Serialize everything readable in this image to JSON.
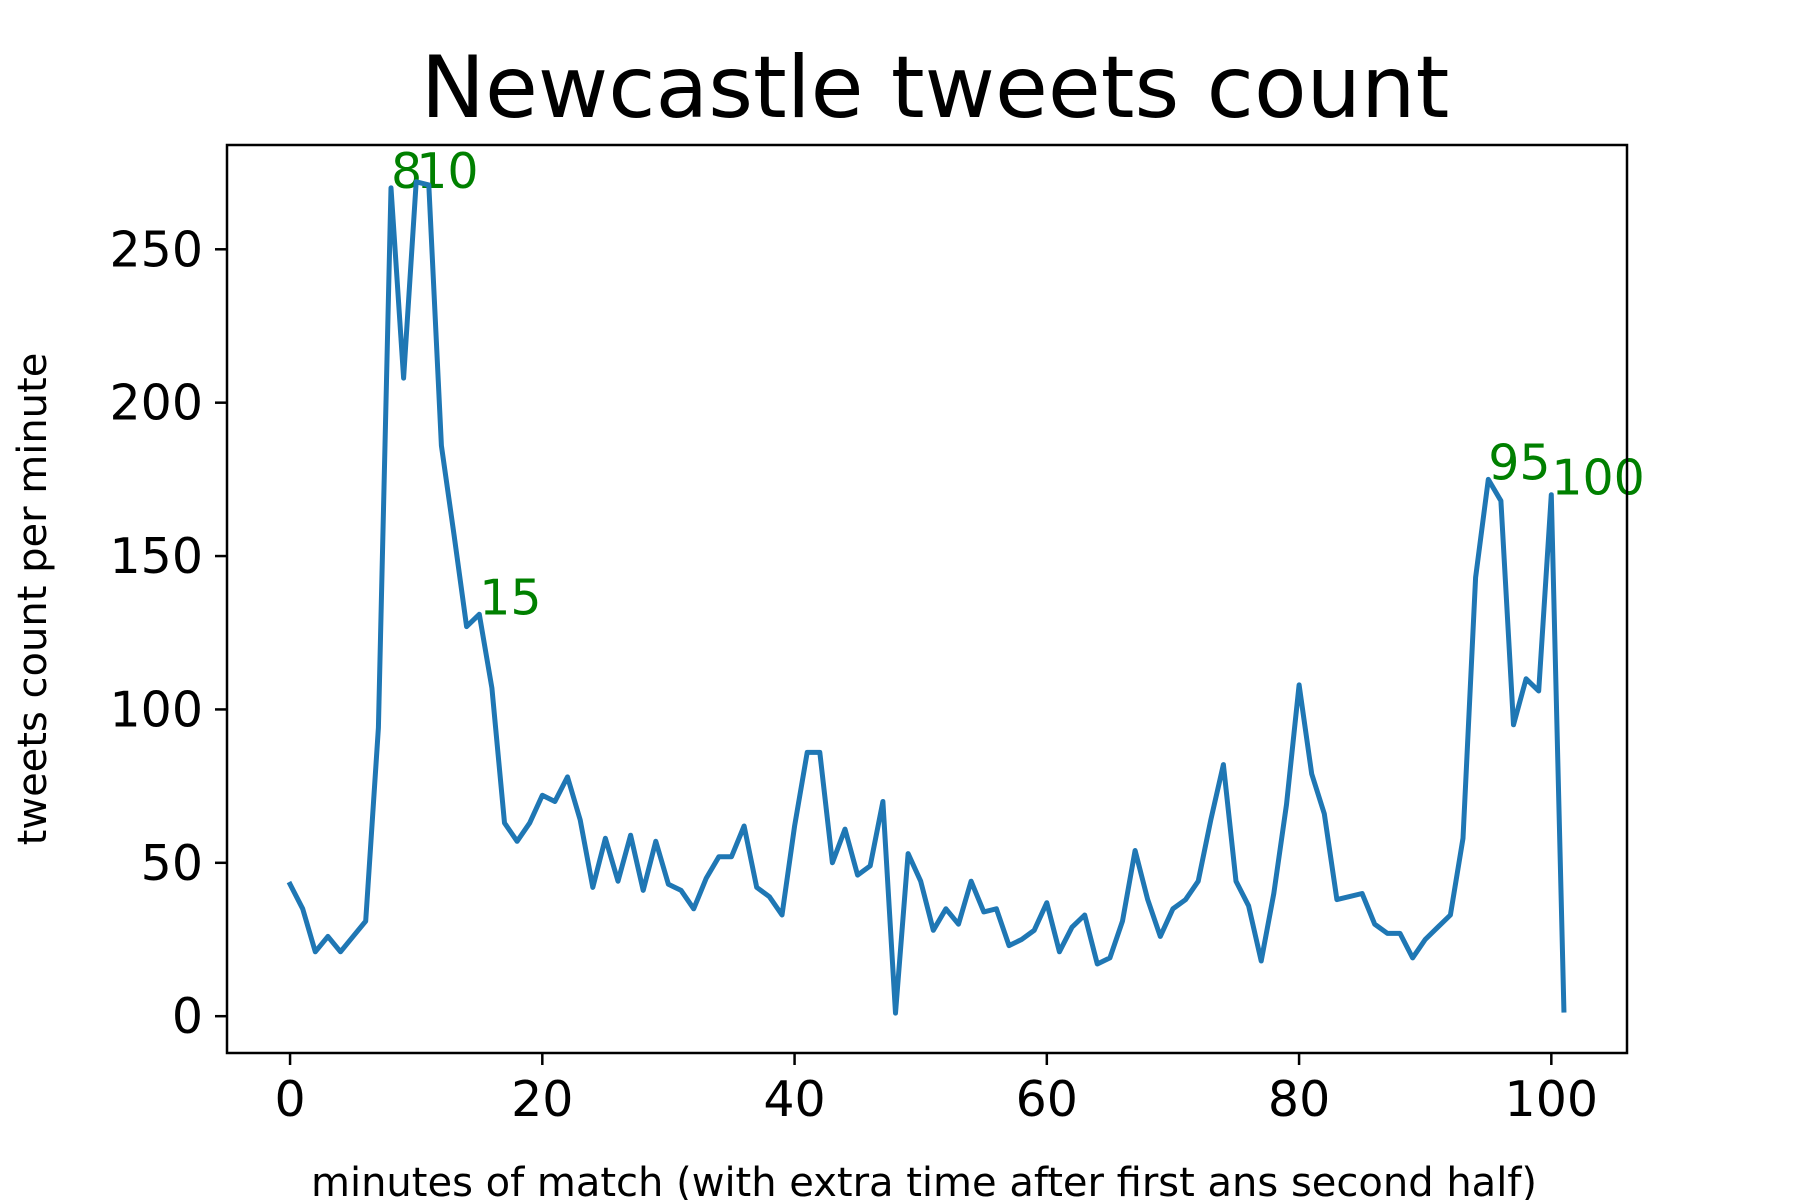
{
  "chart_data": {
    "type": "line",
    "title": "Newcastle tweets count",
    "xlabel": "minutes of match (with extra time after first ans second half)",
    "ylabel": "tweets count per minute",
    "xlim": [
      -5,
      106
    ],
    "ylim": [
      -12,
      284
    ],
    "x_ticks": [
      0,
      20,
      40,
      60,
      80,
      100
    ],
    "y_ticks": [
      0,
      50,
      100,
      150,
      200,
      250
    ],
    "grid": false,
    "line_color": "#1f77b4",
    "annotation_color": "#008000",
    "series": [
      {
        "x": [
          0,
          1,
          2,
          3,
          4,
          5,
          6,
          7,
          8,
          9,
          10,
          11,
          12,
          13,
          14,
          15,
          16,
          17,
          18,
          19,
          20,
          21,
          22,
          23,
          24,
          25,
          26,
          27,
          28,
          29,
          30,
          31,
          32,
          33,
          34,
          35,
          36,
          37,
          38,
          39,
          40,
          41,
          42,
          43,
          44,
          45,
          46,
          47,
          48,
          49,
          50,
          51,
          52,
          53,
          54,
          55,
          56,
          57,
          58,
          59,
          60,
          61,
          62,
          63,
          64,
          65,
          66,
          67,
          68,
          69,
          70,
          71,
          72,
          73,
          74,
          75,
          76,
          77,
          78,
          79,
          80,
          81,
          82,
          83,
          84,
          85,
          86,
          87,
          88,
          89,
          90,
          91,
          92,
          93,
          94,
          95,
          96,
          97,
          98,
          99,
          100,
          101
        ],
        "y": [
          43,
          35,
          21,
          26,
          21,
          26,
          31,
          94,
          270,
          208,
          272,
          271,
          186,
          157,
          127,
          131,
          107,
          63,
          57,
          63,
          72,
          70,
          78,
          64,
          42,
          58,
          44,
          59,
          41,
          57,
          43,
          41,
          35,
          45,
          52,
          52,
          62,
          42,
          39,
          33,
          62,
          86,
          86,
          50,
          61,
          46,
          49,
          70,
          1,
          53,
          44,
          28,
          35,
          30,
          44,
          34,
          35,
          23,
          25,
          28,
          37,
          21,
          29,
          33,
          17,
          19,
          31,
          54,
          38,
          26,
          35,
          38,
          44,
          64,
          82,
          44,
          36,
          18,
          40,
          69,
          108,
          79,
          66,
          38,
          39,
          40,
          30,
          27,
          27,
          19,
          25,
          29,
          33,
          58,
          143,
          175,
          168,
          95,
          110,
          106,
          170,
          2
        ]
      }
    ],
    "annotations": [
      {
        "text": "8",
        "x": 8,
        "y": 270
      },
      {
        "text": "10",
        "x": 10,
        "y": 270
      },
      {
        "text": "15",
        "x": 15,
        "y": 131
      },
      {
        "text": "95",
        "x": 95,
        "y": 175
      },
      {
        "text": "100",
        "x": 100,
        "y": 170
      }
    ]
  }
}
